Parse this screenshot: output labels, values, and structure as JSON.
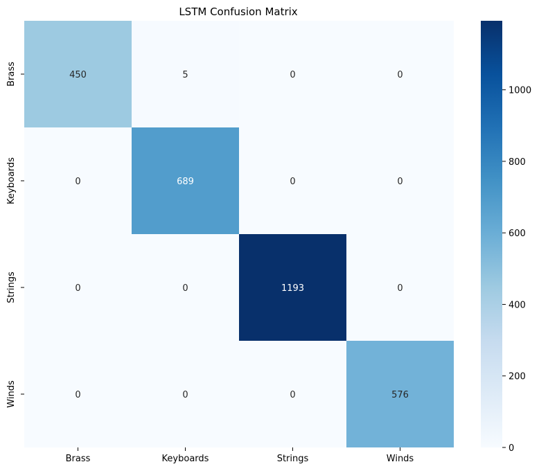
{
  "chart_data": {
    "type": "heatmap",
    "title": "LSTM Confusion Matrix",
    "xlabel": "",
    "ylabel": "",
    "x_categories": [
      "Brass",
      "Keyboards",
      "Strings",
      "Winds"
    ],
    "y_categories": [
      "Brass",
      "Keyboards",
      "Strings",
      "Winds"
    ],
    "matrix": [
      [
        450,
        5,
        0,
        0
      ],
      [
        0,
        689,
        0,
        0
      ],
      [
        0,
        0,
        1193,
        0
      ],
      [
        0,
        0,
        0,
        576
      ]
    ],
    "colormap": "Blues",
    "vmin": 0,
    "vmax": 1193,
    "colorbar_ticks": [
      0,
      200,
      400,
      600,
      800,
      1000
    ],
    "colorbar_tick_labels": [
      "0",
      "200",
      "400",
      "600",
      "800",
      "1000"
    ]
  }
}
